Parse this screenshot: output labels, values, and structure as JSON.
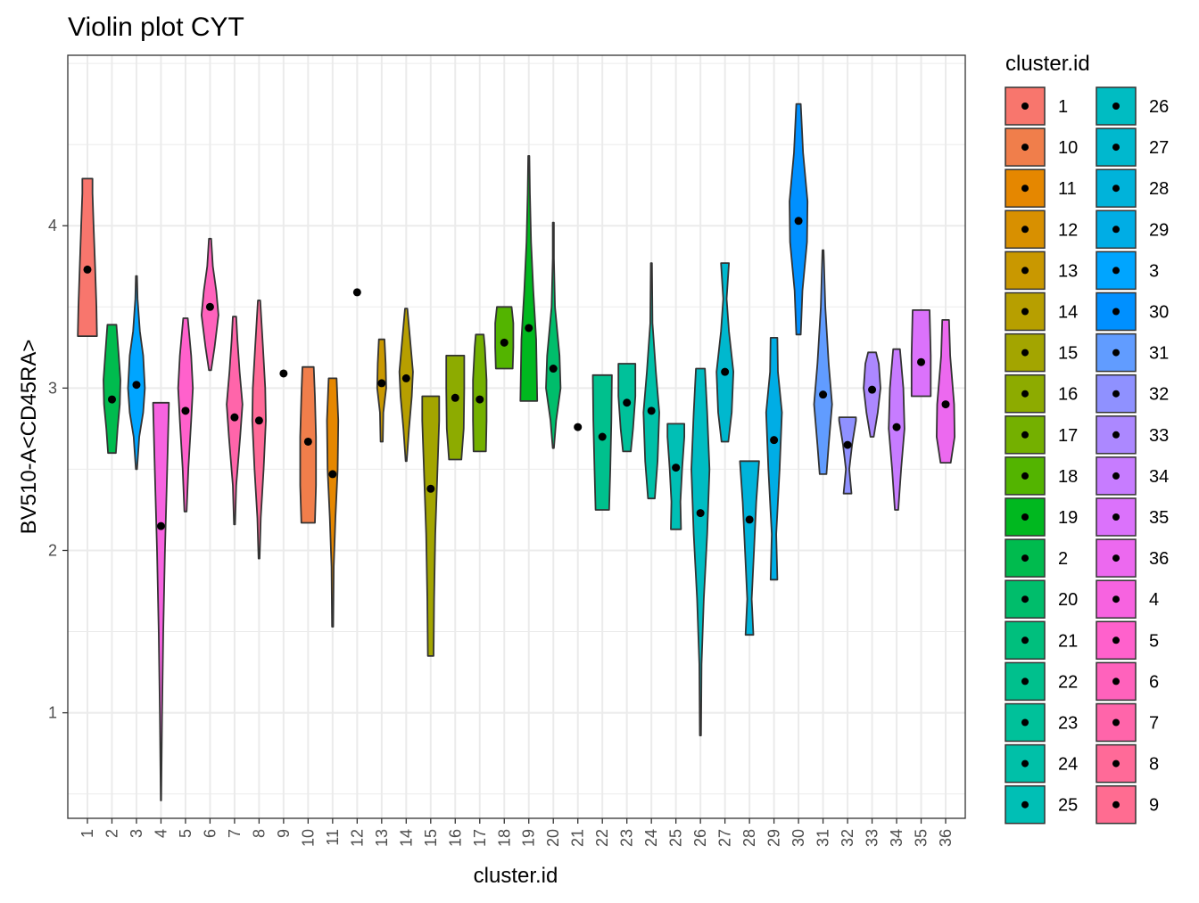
{
  "chart_data": {
    "type": "violin",
    "title": "Violin plot CYT",
    "xlabel": "cluster.id",
    "ylabel": "BV510-A<CD45RA>",
    "ylim": [
      0.35,
      5.05
    ],
    "yticks": [
      1,
      2,
      3,
      4
    ],
    "grid": true,
    "legend_title": "cluster.id",
    "legend_position": "right",
    "categories": [
      "1",
      "2",
      "3",
      "4",
      "5",
      "6",
      "7",
      "8",
      "9",
      "10",
      "11",
      "12",
      "13",
      "14",
      "15",
      "16",
      "17",
      "18",
      "19",
      "20",
      "21",
      "22",
      "23",
      "24",
      "25",
      "26",
      "27",
      "28",
      "29",
      "30",
      "31",
      "32",
      "33",
      "34",
      "35",
      "36"
    ],
    "legend_order": [
      "1",
      "10",
      "11",
      "12",
      "13",
      "14",
      "15",
      "16",
      "17",
      "18",
      "19",
      "2",
      "20",
      "21",
      "22",
      "23",
      "24",
      "25",
      "26",
      "27",
      "28",
      "29",
      "3",
      "30",
      "31",
      "32",
      "33",
      "34",
      "35",
      "36",
      "4",
      "5",
      "6",
      "7",
      "8",
      "9"
    ],
    "medians": {
      "1": 3.73,
      "2": 2.93,
      "3": 3.02,
      "4": 2.15,
      "5": 2.86,
      "6": 3.5,
      "7": 2.82,
      "8": 2.8,
      "9": 3.09,
      "10": 2.67,
      "11": 2.47,
      "12": 3.59,
      "13": 3.03,
      "14": 3.06,
      "15": 2.38,
      "16": 2.94,
      "17": 2.93,
      "18": 3.28,
      "19": 3.37,
      "20": 3.12,
      "21": 2.76,
      "22": 2.7,
      "23": 2.91,
      "24": 2.86,
      "25": 2.51,
      "26": 2.23,
      "27": 3.1,
      "28": 2.19,
      "29": 2.68,
      "30": 4.03,
      "31": 2.96,
      "32": 2.65,
      "33": 2.99,
      "34": 2.76,
      "35": 3.16,
      "36": 2.9
    },
    "violins": {
      "1": [
        [
          3.32,
          0.85
        ],
        [
          3.5,
          0.8
        ],
        [
          3.75,
          0.68
        ],
        [
          4.0,
          0.55
        ],
        [
          4.2,
          0.45
        ],
        [
          4.29,
          0.45
        ]
      ],
      "2": [
        [
          2.6,
          0.35
        ],
        [
          2.75,
          0.5
        ],
        [
          2.9,
          0.7
        ],
        [
          3.05,
          0.75
        ],
        [
          3.2,
          0.6
        ],
        [
          3.39,
          0.4
        ]
      ],
      "3": [
        [
          2.5,
          0.05
        ],
        [
          2.7,
          0.25
        ],
        [
          2.85,
          0.6
        ],
        [
          3.0,
          0.75
        ],
        [
          3.2,
          0.6
        ],
        [
          3.35,
          0.3
        ],
        [
          3.55,
          0.1
        ],
        [
          3.69,
          0.05
        ]
      ],
      "4": [
        [
          0.46,
          0.02
        ],
        [
          1.0,
          0.1
        ],
        [
          1.5,
          0.2
        ],
        [
          2.0,
          0.35
        ],
        [
          2.5,
          0.55
        ],
        [
          2.9,
          0.7
        ],
        [
          2.91,
          0.7
        ]
      ],
      "5": [
        [
          2.24,
          0.1
        ],
        [
          2.5,
          0.25
        ],
        [
          2.8,
          0.5
        ],
        [
          3.0,
          0.65
        ],
        [
          3.2,
          0.5
        ],
        [
          3.43,
          0.2
        ]
      ],
      "6": [
        [
          3.11,
          0.1
        ],
        [
          3.25,
          0.4
        ],
        [
          3.45,
          0.75
        ],
        [
          3.6,
          0.55
        ],
        [
          3.75,
          0.25
        ],
        [
          3.92,
          0.1
        ]
      ],
      "7": [
        [
          2.16,
          0.05
        ],
        [
          2.4,
          0.15
        ],
        [
          2.7,
          0.5
        ],
        [
          2.9,
          0.7
        ],
        [
          3.1,
          0.45
        ],
        [
          3.3,
          0.25
        ],
        [
          3.44,
          0.15
        ]
      ],
      "8": [
        [
          1.95,
          0.05
        ],
        [
          2.2,
          0.15
        ],
        [
          2.5,
          0.4
        ],
        [
          2.8,
          0.6
        ],
        [
          3.0,
          0.55
        ],
        [
          3.25,
          0.35
        ],
        [
          3.54,
          0.1
        ]
      ],
      "10": [
        [
          2.17,
          0.6
        ],
        [
          2.4,
          0.7
        ],
        [
          2.7,
          0.7
        ],
        [
          2.95,
          0.6
        ],
        [
          3.13,
          0.5
        ]
      ],
      "11": [
        [
          1.53,
          0.05
        ],
        [
          1.9,
          0.1
        ],
        [
          2.2,
          0.25
        ],
        [
          2.5,
          0.45
        ],
        [
          2.8,
          0.5
        ],
        [
          3.06,
          0.35
        ]
      ],
      "13": [
        [
          2.67,
          0.1
        ],
        [
          2.85,
          0.15
        ],
        [
          3.0,
          0.4
        ],
        [
          3.15,
          0.35
        ],
        [
          3.3,
          0.25
        ]
      ],
      "14": [
        [
          2.55,
          0.05
        ],
        [
          2.75,
          0.25
        ],
        [
          2.95,
          0.5
        ],
        [
          3.1,
          0.6
        ],
        [
          3.3,
          0.35
        ],
        [
          3.49,
          0.1
        ]
      ],
      "15": [
        [
          1.35,
          0.25
        ],
        [
          1.7,
          0.3
        ],
        [
          2.1,
          0.4
        ],
        [
          2.5,
          0.6
        ],
        [
          2.8,
          0.75
        ],
        [
          2.95,
          0.75
        ]
      ],
      "16": [
        [
          2.56,
          0.55
        ],
        [
          2.75,
          0.75
        ],
        [
          3.0,
          0.8
        ],
        [
          3.2,
          0.8
        ]
      ],
      "17": [
        [
          2.61,
          0.55
        ],
        [
          2.8,
          0.6
        ],
        [
          3.05,
          0.6
        ],
        [
          3.25,
          0.45
        ],
        [
          3.33,
          0.35
        ]
      ],
      "18": [
        [
          3.12,
          0.75
        ],
        [
          3.25,
          0.8
        ],
        [
          3.4,
          0.8
        ],
        [
          3.5,
          0.65
        ]
      ],
      "19": [
        [
          2.92,
          0.75
        ],
        [
          3.3,
          0.65
        ],
        [
          3.6,
          0.4
        ],
        [
          3.9,
          0.2
        ],
        [
          4.2,
          0.1
        ],
        [
          4.43,
          0.05
        ]
      ],
      "20": [
        [
          2.63,
          0.05
        ],
        [
          2.8,
          0.25
        ],
        [
          3.0,
          0.65
        ],
        [
          3.2,
          0.55
        ],
        [
          3.5,
          0.15
        ],
        [
          3.8,
          0.05
        ],
        [
          4.02,
          0.05
        ]
      ],
      "22": [
        [
          2.25,
          0.6
        ],
        [
          2.5,
          0.7
        ],
        [
          2.8,
          0.8
        ],
        [
          3.08,
          0.85
        ]
      ],
      "23": [
        [
          2.61,
          0.35
        ],
        [
          2.75,
          0.55
        ],
        [
          2.95,
          0.75
        ],
        [
          3.15,
          0.75
        ]
      ],
      "24": [
        [
          2.32,
          0.3
        ],
        [
          2.55,
          0.55
        ],
        [
          2.85,
          0.7
        ],
        [
          3.1,
          0.4
        ],
        [
          3.4,
          0.1
        ],
        [
          3.77,
          0.05
        ]
      ],
      "25": [
        [
          2.13,
          0.45
        ],
        [
          2.3,
          0.4
        ],
        [
          2.5,
          0.55
        ],
        [
          2.7,
          0.75
        ],
        [
          2.78,
          0.75
        ]
      ],
      "26": [
        [
          0.86,
          0.05
        ],
        [
          1.3,
          0.1
        ],
        [
          1.7,
          0.3
        ],
        [
          2.1,
          0.6
        ],
        [
          2.5,
          0.8
        ],
        [
          2.85,
          0.6
        ],
        [
          3.12,
          0.4
        ]
      ],
      "27": [
        [
          2.67,
          0.3
        ],
        [
          2.85,
          0.6
        ],
        [
          3.1,
          0.75
        ],
        [
          3.35,
          0.35
        ],
        [
          3.55,
          0.15
        ],
        [
          3.77,
          0.35
        ]
      ],
      "28": [
        [
          1.48,
          0.35
        ],
        [
          1.7,
          0.2
        ],
        [
          2.0,
          0.4
        ],
        [
          2.3,
          0.6
        ],
        [
          2.55,
          0.85
        ]
      ],
      "29": [
        [
          1.82,
          0.3
        ],
        [
          2.1,
          0.2
        ],
        [
          2.5,
          0.5
        ],
        [
          2.85,
          0.7
        ],
        [
          3.1,
          0.35
        ],
        [
          3.31,
          0.3
        ]
      ],
      "30": [
        [
          3.33,
          0.2
        ],
        [
          3.6,
          0.35
        ],
        [
          3.9,
          0.75
        ],
        [
          4.15,
          0.8
        ],
        [
          4.45,
          0.4
        ],
        [
          4.75,
          0.2
        ]
      ],
      "31": [
        [
          2.47,
          0.3
        ],
        [
          2.65,
          0.5
        ],
        [
          2.9,
          0.8
        ],
        [
          3.15,
          0.5
        ],
        [
          3.5,
          0.2
        ],
        [
          3.85,
          0.05
        ]
      ],
      "32": [
        [
          2.35,
          0.35
        ],
        [
          2.5,
          0.15
        ],
        [
          2.65,
          0.4
        ],
        [
          2.8,
          0.75
        ],
        [
          2.82,
          0.75
        ]
      ],
      "33": [
        [
          2.7,
          0.15
        ],
        [
          2.85,
          0.5
        ],
        [
          3.0,
          0.75
        ],
        [
          3.15,
          0.6
        ],
        [
          3.22,
          0.35
        ]
      ],
      "34": [
        [
          2.25,
          0.15
        ],
        [
          2.5,
          0.4
        ],
        [
          2.75,
          0.7
        ],
        [
          3.0,
          0.6
        ],
        [
          3.24,
          0.3
        ]
      ],
      "35": [
        [
          2.95,
          0.85
        ],
        [
          3.2,
          0.85
        ],
        [
          3.48,
          0.75
        ]
      ],
      "36": [
        [
          2.54,
          0.45
        ],
        [
          2.7,
          0.8
        ],
        [
          2.9,
          0.75
        ],
        [
          3.2,
          0.4
        ],
        [
          3.42,
          0.3
        ]
      ]
    },
    "colors": {
      "1": "#F8766D",
      "10": "#F07E4B",
      "11": "#E58700",
      "12": "#D89000",
      "13": "#C99800",
      "14": "#B79F00",
      "15": "#A3A500",
      "16": "#8DAB00",
      "17": "#74B000",
      "18": "#53B400",
      "19": "#00B81F",
      "2": "#00BB4E",
      "20": "#00BD6B",
      "21": "#00BF7D",
      "22": "#00C08D",
      "23": "#00C19A",
      "24": "#00C0A8",
      "25": "#00BFB5",
      "26": "#00BCC2",
      "27": "#00B8CE",
      "28": "#00B3DA",
      "29": "#00ADE5",
      "3": "#00A5FF",
      "30": "#0090FF",
      "31": "#619CFF",
      "32": "#8F91FF",
      "33": "#AC88FF",
      "34": "#C77CFF",
      "35": "#DB72FB",
      "36": "#EC69EF",
      "4": "#F763E0",
      "5": "#FF61CC",
      "6": "#FF62BC",
      "7": "#FF65AA",
      "8": "#FF6A98",
      "9": "#FF6C91"
    }
  }
}
